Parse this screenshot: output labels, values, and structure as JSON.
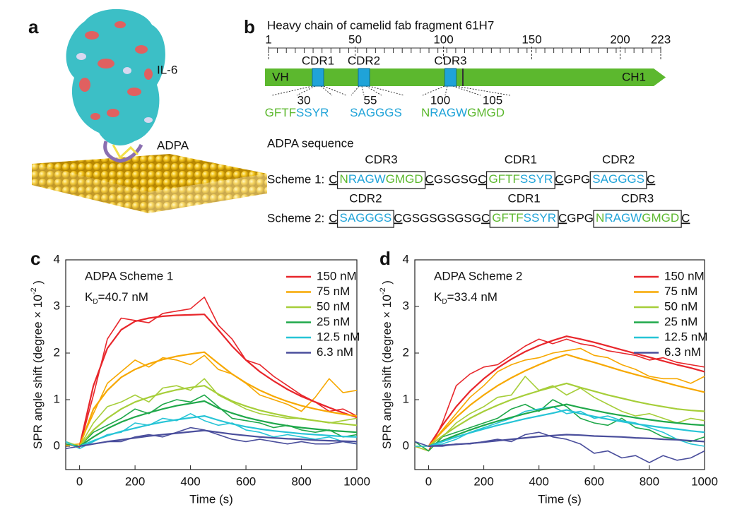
{
  "panel_a": {
    "label": "a",
    "protein": "IL-6",
    "peptide": "ADPA"
  },
  "panel_b": {
    "label": "b",
    "title": "Heavy chain of camelid fab fragment 61H7",
    "ruler": {
      "lim": [
        1,
        223
      ],
      "ticks": [
        1,
        50,
        100,
        150,
        200,
        223
      ]
    },
    "domains": [
      "VH",
      "CH1"
    ],
    "cdrs": [
      {
        "name": "CDR1",
        "position": 29
      },
      {
        "name": "CDR2",
        "position": 55
      },
      {
        "name": "CDR3",
        "position": 104
      }
    ],
    "residue_numbers": [
      30,
      55,
      100,
      105
    ],
    "sequences": [
      [
        {
          "text": "GFTF",
          "color": "#5cb82e"
        },
        {
          "text": "SSYR",
          "color": "#1fa3d8"
        }
      ],
      [
        {
          "text": "SAGGGS",
          "color": "#1fa3d8"
        }
      ],
      [
        {
          "text": "N",
          "color": "#5cb82e"
        },
        {
          "text": "RAGW",
          "color": "#1fa3d8"
        },
        {
          "text": "GMGD",
          "color": "#5cb82e"
        }
      ]
    ],
    "scheme_title": "ADPA sequence",
    "schemes": [
      {
        "label": "Scheme 1:",
        "items": [
          {
            "text": "C",
            "underline": true
          },
          {
            "cdr": "CDR3",
            "seq": [
              {
                "text": "N",
                "color": "#5cb82e"
              },
              {
                "text": "RAGW",
                "color": "#1fa3d8"
              },
              {
                "text": "GMGD",
                "color": "#5cb82e"
              }
            ]
          },
          {
            "text": "C",
            "underline": true
          },
          {
            "text": "GSGSG"
          },
          {
            "text": "C",
            "underline": true
          },
          {
            "cdr": "CDR1",
            "seq": [
              {
                "text": "GFTF",
                "color": "#5cb82e"
              },
              {
                "text": "SSYR",
                "color": "#1fa3d8"
              }
            ]
          },
          {
            "text": "C",
            "underline": true
          },
          {
            "text": "GPG"
          },
          {
            "cdr": "CDR2",
            "seq": [
              {
                "text": "SAGGGS",
                "color": "#1fa3d8"
              }
            ]
          },
          {
            "text": "C",
            "underline": true
          }
        ]
      },
      {
        "label": "Scheme 2:",
        "items": [
          {
            "text": "C",
            "underline": true
          },
          {
            "cdr": "CDR2",
            "seq": [
              {
                "text": "SAGGGS",
                "color": "#1fa3d8"
              }
            ]
          },
          {
            "text": "C",
            "underline": true
          },
          {
            "text": "GSGSGSGSG"
          },
          {
            "text": "C",
            "underline": true
          },
          {
            "cdr": "CDR1",
            "seq": [
              {
                "text": "GFTF",
                "color": "#5cb82e"
              },
              {
                "text": "SSYR",
                "color": "#1fa3d8"
              }
            ]
          },
          {
            "text": "C",
            "underline": true
          },
          {
            "text": "GPG"
          },
          {
            "cdr": "CDR3",
            "seq": [
              {
                "text": "N",
                "color": "#5cb82e"
              },
              {
                "text": "RAGW",
                "color": "#1fa3d8"
              },
              {
                "text": "GMGD",
                "color": "#5cb82e"
              }
            ]
          },
          {
            "text": "C",
            "underline": true
          }
        ]
      }
    ]
  },
  "chart_data": [
    {
      "type": "line",
      "panel": "c",
      "annotation": "ADPA Scheme 1",
      "kd": {
        "text": "K",
        "sub": "D",
        "tail": "=40.7 nM"
      },
      "x_label": "Time (s)",
      "y_label": {
        "text": "SPR angle shift (degree × 10",
        "sup": "-2",
        "tail": " )"
      },
      "x": [
        -50,
        0,
        50,
        100,
        150,
        200,
        250,
        300,
        350,
        400,
        450,
        500,
        550,
        600,
        650,
        700,
        750,
        800,
        850,
        900,
        950,
        1000
      ],
      "xlim": [
        -50,
        1000
      ],
      "xticks": [
        0,
        200,
        400,
        600,
        800,
        1000
      ],
      "ylim": [
        -0.5,
        4
      ],
      "yticks": [
        0,
        1,
        2,
        3,
        4
      ],
      "legend": "upper right",
      "series": [
        {
          "name": "150 nM",
          "color": "#e8262b",
          "values": [
            0.05,
            -0.02,
            1.1,
            2.3,
            2.75,
            2.7,
            2.65,
            2.85,
            2.9,
            2.95,
            3.2,
            2.6,
            2.3,
            1.85,
            1.75,
            1.5,
            1.3,
            1.1,
            0.95,
            0.75,
            0.8,
            0.65
          ],
          "fit": [
            null,
            0,
            1.3,
            2.1,
            2.5,
            2.68,
            2.75,
            2.79,
            2.81,
            2.82,
            2.83,
            2.5,
            2.15,
            1.85,
            1.6,
            1.4,
            1.22,
            1.07,
            0.95,
            0.83,
            0.72,
            0.62
          ]
        },
        {
          "name": "75 nM",
          "color": "#f7a800",
          "values": [
            0.02,
            0.05,
            0.7,
            1.35,
            1.6,
            1.85,
            1.7,
            1.9,
            1.85,
            1.75,
            1.95,
            1.65,
            1.55,
            1.35,
            1.1,
            1.0,
            0.9,
            0.75,
            1.05,
            1.45,
            1.15,
            1.2
          ],
          "fit": [
            null,
            0,
            0.8,
            1.2,
            1.48,
            1.65,
            1.77,
            1.86,
            1.93,
            1.98,
            2.02,
            1.78,
            1.55,
            1.36,
            1.2,
            1.07,
            0.96,
            0.87,
            0.8,
            0.74,
            0.69,
            0.65
          ]
        },
        {
          "name": "50 nM",
          "color": "#a6ce39",
          "values": [
            0.1,
            0,
            0.5,
            0.85,
            0.95,
            1.1,
            0.95,
            1.25,
            1.3,
            1.2,
            1.45,
            1.1,
            0.95,
            0.8,
            0.7,
            0.65,
            0.6,
            0.6,
            0.55,
            0.5,
            0.55,
            0.6
          ],
          "fit": [
            null,
            0,
            0.35,
            0.6,
            0.8,
            0.95,
            1.05,
            1.14,
            1.21,
            1.26,
            1.3,
            1.12,
            0.97,
            0.86,
            0.77,
            0.7,
            0.64,
            0.59,
            0.55,
            0.51,
            0.48,
            0.45
          ]
        },
        {
          "name": "25 nM",
          "color": "#1fa84a",
          "values": [
            0.05,
            0,
            0.3,
            0.45,
            0.6,
            0.8,
            0.7,
            0.9,
            1.0,
            0.95,
            1.1,
            0.85,
            0.6,
            0.55,
            0.5,
            0.4,
            0.45,
            0.35,
            0.3,
            0.35,
            0.2,
            0.25
          ],
          "fit": [
            null,
            0,
            0.2,
            0.38,
            0.52,
            0.63,
            0.72,
            0.8,
            0.87,
            0.92,
            0.97,
            0.82,
            0.71,
            0.62,
            0.55,
            0.49,
            0.44,
            0.4,
            0.37,
            0.34,
            0.32,
            0.3
          ]
        },
        {
          "name": "12.5 nM",
          "color": "#26c4d6",
          "values": [
            0.1,
            -0.05,
            0.1,
            0.25,
            0.3,
            0.5,
            0.45,
            0.6,
            0.55,
            0.7,
            0.55,
            0.45,
            0.5,
            0.35,
            0.3,
            0.2,
            0.25,
            0.2,
            0.15,
            0.2,
            0.1,
            0.05
          ],
          "fit": [
            null,
            0,
            0.12,
            0.23,
            0.32,
            0.39,
            0.46,
            0.52,
            0.57,
            0.61,
            0.65,
            0.56,
            0.48,
            0.42,
            0.37,
            0.33,
            0.3,
            0.27,
            0.25,
            0.23,
            0.21,
            0.2
          ]
        },
        {
          "name": "6.3 nM",
          "color": "#4a4e9c",
          "values": [
            -0.05,
            0,
            0.05,
            0.1,
            0.1,
            0.2,
            0.25,
            0.2,
            0.3,
            0.4,
            0.35,
            0.25,
            0.15,
            0.1,
            0.15,
            0.1,
            0.05,
            0.1,
            0.05,
            0.05,
            0.1,
            0.05
          ],
          "fit": [
            null,
            0,
            0.05,
            0.1,
            0.14,
            0.18,
            0.22,
            0.25,
            0.28,
            0.31,
            0.34,
            0.3,
            0.26,
            0.23,
            0.2,
            0.18,
            0.16,
            0.15,
            0.13,
            0.12,
            0.11,
            0.1
          ]
        }
      ]
    },
    {
      "type": "line",
      "panel": "d",
      "annotation": "ADPA Scheme 2",
      "kd": {
        "text": "K",
        "sub": "D",
        "tail": "=33.4 nM"
      },
      "x_label": "Time (s)",
      "y_label": {
        "text": "SPR angle shift (degree × 10",
        "sup": "-2",
        "tail": " )"
      },
      "x": [
        -50,
        0,
        50,
        100,
        150,
        200,
        250,
        300,
        350,
        400,
        450,
        500,
        550,
        600,
        650,
        700,
        750,
        800,
        850,
        900,
        950,
        1000
      ],
      "xlim": [
        -50,
        1000
      ],
      "xticks": [
        0,
        200,
        400,
        600,
        800,
        1000
      ],
      "ylim": [
        -0.5,
        4
      ],
      "yticks": [
        0,
        1,
        2,
        3,
        4
      ],
      "legend": "upper right",
      "series": [
        {
          "name": "150 nM",
          "color": "#e8262b",
          "values": [
            0,
            -0.1,
            0.5,
            1.3,
            1.55,
            1.7,
            1.75,
            1.95,
            2.15,
            2.3,
            2.2,
            2.3,
            2.2,
            2.15,
            2.05,
            2.0,
            1.95,
            1.85,
            1.9,
            1.8,
            1.75,
            1.7
          ],
          "fit": [
            null,
            0,
            0.45,
            0.85,
            1.18,
            1.45,
            1.68,
            1.87,
            2.03,
            2.16,
            2.27,
            2.36,
            2.3,
            2.23,
            2.15,
            2.07,
            1.99,
            1.91,
            1.83,
            1.75,
            1.68,
            1.6
          ]
        },
        {
          "name": "75 nM",
          "color": "#f7a800",
          "values": [
            0,
            0,
            0.35,
            0.7,
            1.05,
            1.3,
            1.6,
            1.75,
            1.85,
            1.9,
            2.0,
            2.05,
            2.1,
            1.95,
            1.9,
            1.75,
            1.65,
            1.5,
            1.45,
            1.45,
            1.35,
            1.5
          ],
          "fit": [
            null,
            0,
            0.32,
            0.62,
            0.88,
            1.1,
            1.3,
            1.47,
            1.62,
            1.75,
            1.87,
            1.97,
            1.88,
            1.8,
            1.71,
            1.62,
            1.54,
            1.46,
            1.38,
            1.3,
            1.23,
            1.16
          ]
        },
        {
          "name": "50 nM",
          "color": "#a6ce39",
          "values": [
            0,
            -0.1,
            0.2,
            0.5,
            0.7,
            0.85,
            1.05,
            1.1,
            1.5,
            1.2,
            1.3,
            1.1,
            1.25,
            1.05,
            0.9,
            0.75,
            0.65,
            0.7,
            0.6,
            0.5,
            0.6,
            0.55
          ],
          "fit": [
            null,
            0,
            0.22,
            0.42,
            0.6,
            0.75,
            0.88,
            1.0,
            1.1,
            1.19,
            1.27,
            1.35,
            1.26,
            1.18,
            1.1,
            1.03,
            0.96,
            0.9,
            0.85,
            0.8,
            0.77,
            0.75
          ]
        },
        {
          "name": "25 nM",
          "color": "#1fa84a",
          "values": [
            0.1,
            -0.1,
            0.2,
            0.3,
            0.4,
            0.5,
            0.6,
            0.8,
            0.9,
            0.75,
            1.0,
            0.85,
            0.6,
            0.5,
            0.45,
            0.6,
            0.4,
            0.35,
            0.2,
            0.15,
            0.1,
            0.2
          ],
          "fit": [
            null,
            0,
            0.12,
            0.24,
            0.35,
            0.45,
            0.54,
            0.62,
            0.7,
            0.77,
            0.84,
            0.9,
            0.83,
            0.77,
            0.71,
            0.66,
            0.61,
            0.57,
            0.53,
            0.5,
            0.47,
            0.45
          ]
        },
        {
          "name": "12.5 nM",
          "color": "#26c4d6",
          "values": [
            0,
            0,
            0.05,
            0.15,
            0.3,
            0.4,
            0.5,
            0.6,
            0.75,
            0.8,
            0.85,
            0.7,
            0.75,
            0.6,
            0.65,
            0.55,
            0.5,
            0.4,
            0.3,
            0.15,
            0.05,
            0.0
          ],
          "fit": [
            null,
            0,
            0.1,
            0.2,
            0.29,
            0.37,
            0.45,
            0.52,
            0.59,
            0.65,
            0.71,
            0.78,
            0.7,
            0.64,
            0.58,
            0.53,
            0.48,
            0.44,
            0.4,
            0.37,
            0.33,
            0.3
          ]
        },
        {
          "name": "6.3 nM",
          "color": "#4a4e9c",
          "values": [
            0.1,
            0,
            0,
            0.05,
            0.05,
            0.1,
            0.15,
            0.1,
            0.25,
            0.3,
            0.2,
            0.15,
            0.05,
            -0.15,
            -0.1,
            -0.25,
            -0.2,
            -0.35,
            -0.2,
            -0.3,
            -0.25,
            -0.1
          ],
          "fit": [
            null,
            0,
            0.02,
            0.04,
            0.06,
            0.09,
            0.12,
            0.15,
            0.18,
            0.21,
            0.23,
            0.25,
            0.24,
            0.22,
            0.21,
            0.2,
            0.18,
            0.17,
            0.15,
            0.14,
            0.12,
            0.1
          ]
        }
      ]
    }
  ]
}
